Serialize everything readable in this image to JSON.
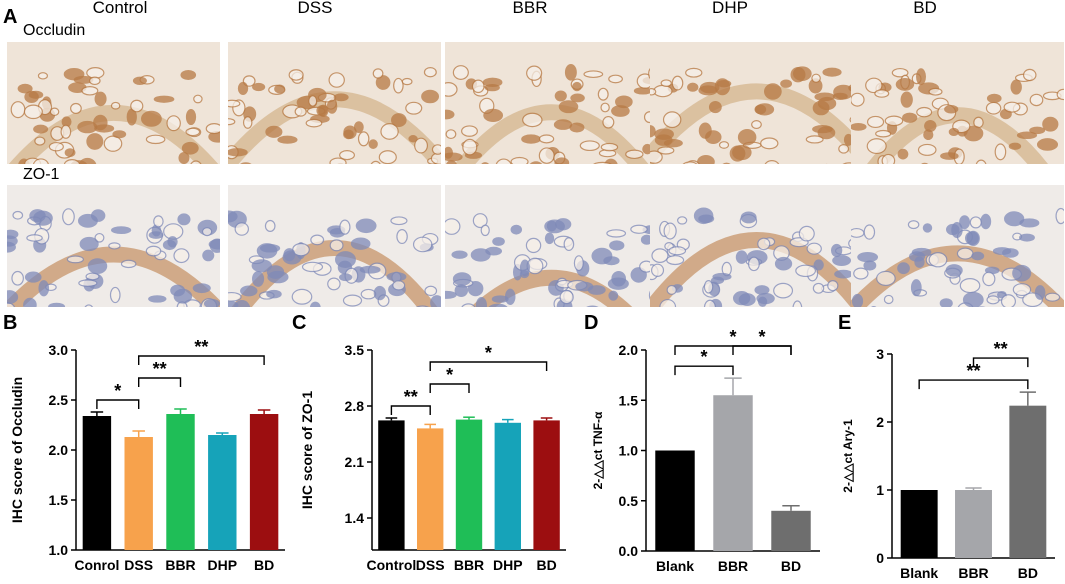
{
  "figure": {
    "panel_letters": [
      "A",
      "B",
      "C",
      "D",
      "E"
    ],
    "histology": {
      "columns": [
        "Control",
        "DSS",
        "BBR",
        "DHP",
        "BD"
      ],
      "rows": [
        {
          "label": "Occludin",
          "stain_color": "#b77a45",
          "background": "#efe4d8"
        },
        {
          "label": "ZO-1",
          "stain_color": "#7f8ab8",
          "background": "#efebe8"
        }
      ]
    }
  },
  "chart_data": [
    {
      "type": "bar",
      "panel": "B",
      "title": "",
      "xlabel": "",
      "ylabel": "IHC score of Occludin",
      "categories": [
        "Conrol",
        "DSS",
        "BBR",
        "DHP",
        "BD"
      ],
      "values": [
        2.34,
        2.13,
        2.36,
        2.15,
        2.36
      ],
      "errors": [
        0.04,
        0.06,
        0.05,
        0.02,
        0.04
      ],
      "colors": [
        "#000000",
        "#f7a24c",
        "#1fbe57",
        "#16a3b9",
        "#9c0e10"
      ],
      "ylim": [
        1.0,
        3.0
      ],
      "yticks": [
        "1.0",
        "1.5",
        "2.0",
        "2.5",
        "3.0"
      ],
      "significance": [
        {
          "from": 0,
          "to": 1,
          "label": "*"
        },
        {
          "from": 1,
          "to": 2,
          "label": "**"
        },
        {
          "from": 1,
          "to": 4,
          "label": "**"
        }
      ]
    },
    {
      "type": "bar",
      "panel": "C",
      "title": "",
      "xlabel": "",
      "ylabel": "IHC score of  ZO-1",
      "categories": [
        "Control",
        "DSS",
        "BBR",
        "DHP",
        "BD"
      ],
      "values": [
        2.62,
        2.52,
        2.63,
        2.59,
        2.62
      ],
      "errors": [
        0.03,
        0.05,
        0.03,
        0.04,
        0.03
      ],
      "colors": [
        "#000000",
        "#f7a24c",
        "#1fbe57",
        "#16a3b9",
        "#9c0e10"
      ],
      "ylim": [
        1.0,
        3.5
      ],
      "yticks": [
        "1.4",
        "2.1",
        "2.8",
        "3.5"
      ],
      "significance": [
        {
          "from": 0,
          "to": 1,
          "label": "**"
        },
        {
          "from": 1,
          "to": 2,
          "label": "*"
        },
        {
          "from": 1,
          "to": 4,
          "label": "*"
        }
      ]
    },
    {
      "type": "bar",
      "panel": "D",
      "title": "",
      "xlabel": "",
      "ylabel": "2-△△ct  TNF-α",
      "categories": [
        "Blank",
        "BBR",
        "BD"
      ],
      "values": [
        1.0,
        1.55,
        0.4
      ],
      "errors": [
        0.0,
        0.17,
        0.05
      ],
      "colors": [
        "#000000",
        "#a5a6aa",
        "#6e6e6e"
      ],
      "ylim": [
        0.0,
        2.0
      ],
      "yticks": [
        "0.0",
        "0.5",
        "1.0",
        "1.5",
        "2.0"
      ],
      "significance": [
        {
          "from": 0,
          "to": 1,
          "label": "*"
        },
        {
          "from": 1,
          "to": 2,
          "label": "*"
        },
        {
          "from": 0,
          "to": 2,
          "label": "*"
        }
      ]
    },
    {
      "type": "bar",
      "panel": "E",
      "title": "",
      "xlabel": "",
      "ylabel": "2-△△ct  Ary-1",
      "categories": [
        "Blank",
        "BBR",
        "BD"
      ],
      "values": [
        1.0,
        1.0,
        2.24
      ],
      "errors": [
        0.0,
        0.03,
        0.2
      ],
      "colors": [
        "#000000",
        "#a5a6aa",
        "#6e6e6e"
      ],
      "ylim": [
        0.0,
        3.0
      ],
      "yticks": [
        "0",
        "1",
        "2",
        "3"
      ],
      "significance": [
        {
          "from": 0,
          "to": 2,
          "label": "**"
        },
        {
          "from": 1,
          "to": 2,
          "label": "**"
        }
      ]
    }
  ]
}
